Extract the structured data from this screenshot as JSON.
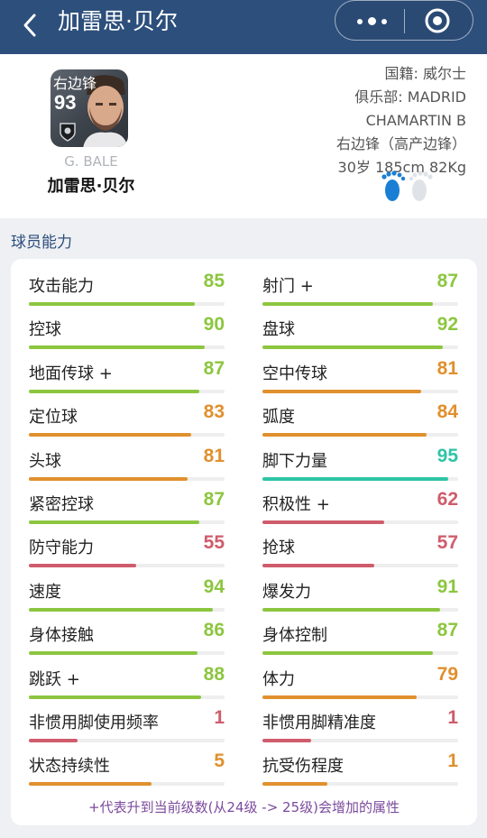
{
  "header": {
    "title": "加雷思·贝尔"
  },
  "player": {
    "card_position": "右边锋",
    "card_rating": "93",
    "name_en": "G. BALE",
    "name_cn": "加雷思·贝尔",
    "nationality": "国籍: 威尔士",
    "club_line1": "俱乐部: MADRID",
    "club_line2": "CHAMARTIN B",
    "position_desc": "右边锋（高产边锋）",
    "age_height_weight": "30岁 185cm 82Kg",
    "preferred_foot": "left"
  },
  "abilities": {
    "section_title": "球员能力",
    "colors": {
      "green": "#8cc63f",
      "orange": "#e0902d",
      "red": "#cf5c6c",
      "teal": "#2ec4a6"
    },
    "items": [
      {
        "label": "攻击能力",
        "value": "85",
        "fraction": 0.85,
        "color": "green"
      },
      {
        "label": "射门 +",
        "value": "87",
        "fraction": 0.87,
        "color": "green"
      },
      {
        "label": "控球",
        "value": "90",
        "fraction": 0.9,
        "color": "green"
      },
      {
        "label": "盘球",
        "value": "92",
        "fraction": 0.92,
        "color": "green"
      },
      {
        "label": "地面传球 +",
        "value": "87",
        "fraction": 0.87,
        "color": "green"
      },
      {
        "label": "空中传球",
        "value": "81",
        "fraction": 0.81,
        "color": "orange"
      },
      {
        "label": "定位球",
        "value": "83",
        "fraction": 0.83,
        "color": "orange"
      },
      {
        "label": "弧度",
        "value": "84",
        "fraction": 0.84,
        "color": "orange"
      },
      {
        "label": "头球",
        "value": "81",
        "fraction": 0.81,
        "color": "orange"
      },
      {
        "label": "脚下力量",
        "value": "95",
        "fraction": 0.95,
        "color": "teal"
      },
      {
        "label": "紧密控球",
        "value": "87",
        "fraction": 0.87,
        "color": "green"
      },
      {
        "label": "积极性 +",
        "value": "62",
        "fraction": 0.62,
        "color": "red"
      },
      {
        "label": "防守能力",
        "value": "55",
        "fraction": 0.55,
        "color": "red"
      },
      {
        "label": "抢球",
        "value": "57",
        "fraction": 0.57,
        "color": "red"
      },
      {
        "label": "速度",
        "value": "94",
        "fraction": 0.94,
        "color": "green"
      },
      {
        "label": "爆发力",
        "value": "91",
        "fraction": 0.91,
        "color": "green"
      },
      {
        "label": "身体接触",
        "value": "86",
        "fraction": 0.86,
        "color": "green"
      },
      {
        "label": "身体控制",
        "value": "87",
        "fraction": 0.87,
        "color": "green"
      },
      {
        "label": "跳跃 +",
        "value": "88",
        "fraction": 0.88,
        "color": "green"
      },
      {
        "label": "体力",
        "value": "79",
        "fraction": 0.79,
        "color": "orange"
      },
      {
        "label": "非惯用脚使用频率",
        "value": "1",
        "fraction": 0.25,
        "color": "red"
      },
      {
        "label": "非惯用脚精准度",
        "value": "1",
        "fraction": 0.25,
        "color": "red"
      },
      {
        "label": "状态持续性",
        "value": "5",
        "fraction": 0.625,
        "color": "orange"
      },
      {
        "label": "抗受伤程度",
        "value": "1",
        "fraction": 0.33,
        "color": "orange"
      }
    ],
    "note": "+代表升到当前级数(从24级 -> 25级)会增加的属性"
  }
}
